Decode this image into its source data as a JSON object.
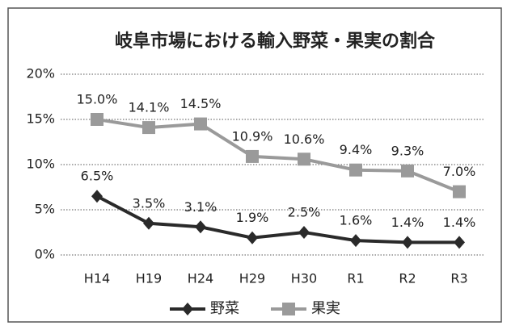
{
  "chart_data": {
    "type": "line",
    "title": "岐阜市場における輸入野菜・果実の割合",
    "categories": [
      "H14",
      "H19",
      "H24",
      "H29",
      "H30",
      "R1",
      "R2",
      "R3"
    ],
    "series": [
      {
        "name": "野菜",
        "color": "#2a2a2a",
        "marker": "diamond",
        "values": [
          6.5,
          3.5,
          3.1,
          1.9,
          2.5,
          1.6,
          1.4,
          1.4
        ],
        "value_labels": [
          "6.5%",
          "3.5%",
          "3.1%",
          "1.9%",
          "2.5%",
          "1.6%",
          "1.4%",
          "1.4%"
        ]
      },
      {
        "name": "果実",
        "color": "#9a9a9a",
        "marker": "square",
        "values": [
          15.0,
          14.1,
          14.5,
          10.9,
          10.6,
          9.4,
          9.3,
          7.0
        ],
        "value_labels": [
          "15.0%",
          "14.1%",
          "14.5%",
          "10.9%",
          "10.6%",
          "9.4%",
          "9.3%",
          "7.0%"
        ]
      }
    ],
    "ylim": [
      0,
      20
    ],
    "yticks": [
      {
        "value": 0,
        "label": "0%"
      },
      {
        "value": 5,
        "label": "5%"
      },
      {
        "value": 10,
        "label": "10%"
      },
      {
        "value": 15,
        "label": "15%"
      },
      {
        "value": 20,
        "label": "20%"
      }
    ],
    "grid": true,
    "legend": "bottom"
  }
}
